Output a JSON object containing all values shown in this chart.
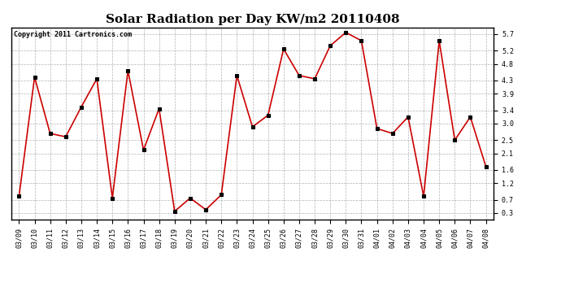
{
  "title": "Solar Radiation per Day KW/m2 20110408",
  "copyright": "Copyright 2011 Cartronics.com",
  "dates": [
    "03/09",
    "03/10",
    "03/11",
    "03/12",
    "03/13",
    "03/14",
    "03/15",
    "03/16",
    "03/17",
    "03/18",
    "03/19",
    "03/20",
    "03/21",
    "03/22",
    "03/23",
    "03/24",
    "03/25",
    "03/26",
    "03/27",
    "03/28",
    "03/29",
    "03/30",
    "03/31",
    "04/01",
    "04/02",
    "04/03",
    "04/04",
    "04/05",
    "04/06",
    "04/07",
    "04/08"
  ],
  "values": [
    0.8,
    4.4,
    2.7,
    2.6,
    3.5,
    4.35,
    0.75,
    4.6,
    2.2,
    3.45,
    0.35,
    0.75,
    0.4,
    0.85,
    4.45,
    2.9,
    3.25,
    5.25,
    4.45,
    4.35,
    5.35,
    5.75,
    5.5,
    2.85,
    2.7,
    3.2,
    0.8,
    5.5,
    2.5,
    3.2,
    1.7
  ],
  "line_color": "#cc0000",
  "marker": "s",
  "marker_size": 2.5,
  "marker_color": "#000000",
  "bg_color": "#ffffff",
  "grid_color": "#aaaaaa",
  "ylim": [
    0.1,
    5.9
  ],
  "yticks": [
    0.3,
    0.7,
    1.2,
    1.6,
    2.1,
    2.5,
    3.0,
    3.4,
    3.9,
    4.3,
    4.8,
    5.2,
    5.7
  ],
  "title_fontsize": 11,
  "tick_fontsize": 6,
  "copyright_fontsize": 6
}
